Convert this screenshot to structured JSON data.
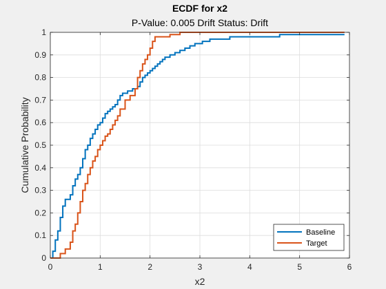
{
  "chart_data": {
    "type": "line",
    "step": true,
    "title": "ECDF for x2",
    "subtitle": "P-Value: 0.005 Drift Status: Drift",
    "xlabel": "x2",
    "ylabel": "Cumulative Probability",
    "xlim": [
      0,
      6
    ],
    "ylim": [
      0,
      1
    ],
    "xticks": [
      "0",
      "1",
      "2",
      "3",
      "4",
      "5",
      "6"
    ],
    "yticks": [
      "0",
      "0.1",
      "0.2",
      "0.3",
      "0.4",
      "0.5",
      "0.6",
      "0.7",
      "0.8",
      "0.9",
      "1"
    ],
    "grid": true,
    "legend_position": "bottom-right",
    "series": [
      {
        "name": "Baseline",
        "color": "#0072BD",
        "x": [
          0.0,
          0.05,
          0.1,
          0.15,
          0.2,
          0.25,
          0.3,
          0.4,
          0.45,
          0.5,
          0.55,
          0.6,
          0.65,
          0.7,
          0.75,
          0.8,
          0.85,
          0.9,
          0.95,
          1.0,
          1.05,
          1.1,
          1.15,
          1.2,
          1.25,
          1.3,
          1.35,
          1.4,
          1.45,
          1.55,
          1.65,
          1.7,
          1.75,
          1.8,
          1.85,
          1.9,
          1.95,
          2.0,
          2.05,
          2.1,
          2.15,
          2.2,
          2.25,
          2.3,
          2.4,
          2.5,
          2.6,
          2.7,
          2.8,
          2.9,
          3.05,
          3.2,
          3.4,
          3.6,
          4.0,
          4.6,
          5.0,
          5.9
        ],
        "y": [
          0.0,
          0.03,
          0.08,
          0.12,
          0.18,
          0.23,
          0.26,
          0.28,
          0.32,
          0.35,
          0.37,
          0.4,
          0.44,
          0.48,
          0.5,
          0.53,
          0.55,
          0.57,
          0.59,
          0.6,
          0.62,
          0.64,
          0.65,
          0.66,
          0.67,
          0.68,
          0.7,
          0.72,
          0.73,
          0.74,
          0.75,
          0.75,
          0.76,
          0.78,
          0.8,
          0.81,
          0.82,
          0.83,
          0.84,
          0.85,
          0.86,
          0.87,
          0.88,
          0.89,
          0.9,
          0.91,
          0.92,
          0.93,
          0.94,
          0.95,
          0.96,
          0.97,
          0.97,
          0.98,
          0.98,
          0.99,
          0.99,
          0.99
        ]
      },
      {
        "name": "Target",
        "color": "#D95319",
        "x": [
          0.0,
          0.2,
          0.3,
          0.4,
          0.45,
          0.5,
          0.55,
          0.6,
          0.65,
          0.7,
          0.75,
          0.8,
          0.85,
          0.9,
          0.95,
          1.0,
          1.05,
          1.1,
          1.15,
          1.2,
          1.25,
          1.3,
          1.35,
          1.4,
          1.5,
          1.6,
          1.7,
          1.75,
          1.8,
          1.85,
          1.9,
          1.95,
          2.0,
          2.05,
          2.1,
          2.2,
          2.4,
          2.55,
          2.6,
          2.7,
          2.85,
          5.9
        ],
        "y": [
          0.0,
          0.02,
          0.04,
          0.07,
          0.12,
          0.15,
          0.2,
          0.25,
          0.3,
          0.33,
          0.37,
          0.4,
          0.43,
          0.45,
          0.48,
          0.5,
          0.52,
          0.54,
          0.55,
          0.57,
          0.59,
          0.61,
          0.63,
          0.66,
          0.7,
          0.72,
          0.75,
          0.8,
          0.83,
          0.86,
          0.88,
          0.9,
          0.93,
          0.96,
          0.98,
          0.98,
          0.99,
          0.99,
          1.0,
          1.0,
          1.0,
          1.0
        ]
      }
    ]
  }
}
